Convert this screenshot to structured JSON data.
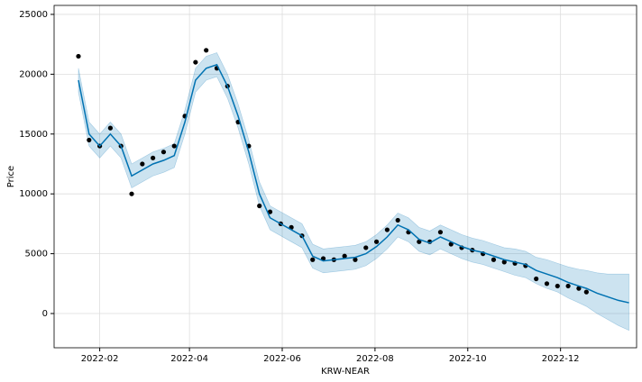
{
  "chart_data": {
    "type": "forecast",
    "xlabel": "KRW-NEAR",
    "ylabel": "Price",
    "x": [
      "2022-01-18",
      "2022-01-25",
      "2022-02-01",
      "2022-02-08",
      "2022-02-15",
      "2022-02-22",
      "2022-03-01",
      "2022-03-08",
      "2022-03-15",
      "2022-03-22",
      "2022-03-29",
      "2022-04-05",
      "2022-04-12",
      "2022-04-19",
      "2022-04-26",
      "2022-05-03",
      "2022-05-10",
      "2022-05-17",
      "2022-05-24",
      "2022-05-31",
      "2022-06-07",
      "2022-06-14",
      "2022-06-21",
      "2022-06-28",
      "2022-07-05",
      "2022-07-12",
      "2022-07-19",
      "2022-07-26",
      "2022-08-02",
      "2022-08-09",
      "2022-08-16",
      "2022-08-23",
      "2022-08-30",
      "2022-09-06",
      "2022-09-13",
      "2022-09-20",
      "2022-09-27",
      "2022-10-04",
      "2022-10-11",
      "2022-10-18",
      "2022-10-25",
      "2022-11-01",
      "2022-11-08",
      "2022-11-15",
      "2022-11-22",
      "2022-11-29",
      "2022-12-06",
      "2022-12-13",
      "2022-12-18",
      "2022-12-25",
      "2023-01-01",
      "2023-01-08",
      "2023-01-15"
    ],
    "observed": [
      21500,
      14500,
      14000,
      15500,
      14000,
      10000,
      12500,
      13000,
      13500,
      14000,
      16500,
      21000,
      22000,
      20500,
      19000,
      16000,
      14000,
      9000,
      8500,
      7500,
      7200,
      6500,
      4500,
      4600,
      4500,
      4800,
      4500,
      5500,
      6000,
      7000,
      7800,
      6800,
      6000,
      6000,
      6800,
      5800,
      5500,
      5300,
      5000,
      4500,
      4300,
      4200,
      4000,
      2900,
      2500,
      2300,
      2300,
      2100,
      1800,
      null,
      null,
      null,
      null
    ],
    "yhat": [
      19500,
      15000,
      14000,
      15000,
      14000,
      11500,
      12000,
      12500,
      12800,
      13200,
      16000,
      19500,
      20500,
      20800,
      19000,
      16500,
      13500,
      10000,
      8000,
      7500,
      7000,
      6500,
      4800,
      4400,
      4500,
      4600,
      4700,
      5000,
      5600,
      6400,
      7400,
      7000,
      6200,
      5900,
      6400,
      6000,
      5600,
      5300,
      5100,
      4800,
      4500,
      4300,
      4100,
      3600,
      3300,
      3000,
      2600,
      2300,
      2100,
      1700,
      1400,
      1100,
      900
    ],
    "yhat_lower": [
      18500,
      14000,
      13000,
      14000,
      13000,
      10500,
      11000,
      11500,
      11800,
      12200,
      15000,
      18500,
      19500,
      19800,
      18000,
      15500,
      12500,
      9000,
      7000,
      6500,
      6000,
      5500,
      3800,
      3400,
      3500,
      3600,
      3700,
      4000,
      4600,
      5400,
      6400,
      6000,
      5200,
      4900,
      5400,
      5000,
      4600,
      4300,
      4100,
      3800,
      3500,
      3200,
      3000,
      2500,
      2100,
      1800,
      1300,
      900,
      600,
      0,
      -500,
      -1000,
      -1400
    ],
    "yhat_upper": [
      20500,
      16000,
      15000,
      16000,
      15000,
      12500,
      13000,
      13500,
      13800,
      14200,
      17000,
      20500,
      21500,
      21800,
      20000,
      17500,
      14500,
      11000,
      9000,
      8500,
      8000,
      7500,
      5800,
      5400,
      5500,
      5600,
      5700,
      6000,
      6600,
      7400,
      8400,
      8000,
      7200,
      6900,
      7400,
      7000,
      6600,
      6300,
      6100,
      5800,
      5500,
      5400,
      5200,
      4700,
      4500,
      4200,
      3900,
      3700,
      3600,
      3400,
      3300,
      3300,
      3300
    ],
    "point_color": "#000000",
    "line_color": "#0072B2",
    "band_color": "#0072B2",
    "xlim": [
      "2022-01-02",
      "2023-01-20"
    ],
    "xticks": [
      {
        "value": "2022-02-01",
        "label": "2022-02"
      },
      {
        "value": "2022-04-01",
        "label": "2022-04"
      },
      {
        "value": "2022-06-01",
        "label": "2022-06"
      },
      {
        "value": "2022-08-01",
        "label": "2022-08"
      },
      {
        "value": "2022-10-01",
        "label": "2022-10"
      },
      {
        "value": "2022-12-01",
        "label": "2022-12"
      }
    ],
    "ylim": [
      -2860,
      25750
    ],
    "yticks": [
      0,
      5000,
      10000,
      15000,
      20000,
      25000
    ],
    "grid": true
  }
}
